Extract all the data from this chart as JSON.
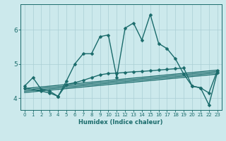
{
  "xlabel": "Humidex (Indice chaleur)",
  "background_color": "#cce9ec",
  "line_color": "#1a6b6b",
  "grid_color": "#aacfd4",
  "xlim": [
    -0.5,
    23.5
  ],
  "ylim": [
    3.65,
    6.75
  ],
  "yticks": [
    4,
    5,
    6
  ],
  "xticks": [
    0,
    1,
    2,
    3,
    4,
    5,
    6,
    7,
    8,
    9,
    10,
    11,
    12,
    13,
    14,
    15,
    16,
    17,
    18,
    19,
    20,
    21,
    22,
    23
  ],
  "lines": [
    {
      "x": [
        0,
        1,
        2,
        3,
        4,
        5,
        6,
        7,
        8,
        9,
        10,
        11,
        12,
        13,
        14,
        15,
        16,
        17,
        18,
        19,
        20,
        21,
        22,
        23
      ],
      "y": [
        4.35,
        4.6,
        4.25,
        4.2,
        4.05,
        4.5,
        5.0,
        5.3,
        5.3,
        5.8,
        5.85,
        4.6,
        6.05,
        6.2,
        5.7,
        6.45,
        5.6,
        5.45,
        5.15,
        4.7,
        4.35,
        4.3,
        4.15,
        4.8
      ],
      "marker": "D",
      "ms": 2.5,
      "lw": 1.0,
      "has_markers": true
    },
    {
      "x": [
        0,
        2,
        3,
        4,
        5,
        6,
        7,
        8,
        9,
        10,
        11,
        12,
        13,
        14,
        15,
        16,
        17,
        18,
        19,
        20,
        21,
        22,
        23
      ],
      "y": [
        4.3,
        4.2,
        4.15,
        4.05,
        4.4,
        4.45,
        4.52,
        4.6,
        4.68,
        4.72,
        4.73,
        4.75,
        4.77,
        4.78,
        4.8,
        4.82,
        4.84,
        4.86,
        4.88,
        4.35,
        4.3,
        3.8,
        4.75
      ],
      "marker": "D",
      "ms": 2.5,
      "lw": 1.0,
      "has_markers": true
    },
    {
      "x": [
        0,
        23
      ],
      "y": [
        4.28,
        4.82
      ],
      "marker": null,
      "ms": 0,
      "lw": 0.9,
      "has_markers": false
    },
    {
      "x": [
        0,
        23
      ],
      "y": [
        4.24,
        4.78
      ],
      "marker": null,
      "ms": 0,
      "lw": 0.9,
      "has_markers": false
    },
    {
      "x": [
        0,
        23
      ],
      "y": [
        4.2,
        4.74
      ],
      "marker": null,
      "ms": 0,
      "lw": 0.9,
      "has_markers": false
    },
    {
      "x": [
        0,
        23
      ],
      "y": [
        4.16,
        4.7
      ],
      "marker": null,
      "ms": 0,
      "lw": 0.9,
      "has_markers": false
    }
  ]
}
